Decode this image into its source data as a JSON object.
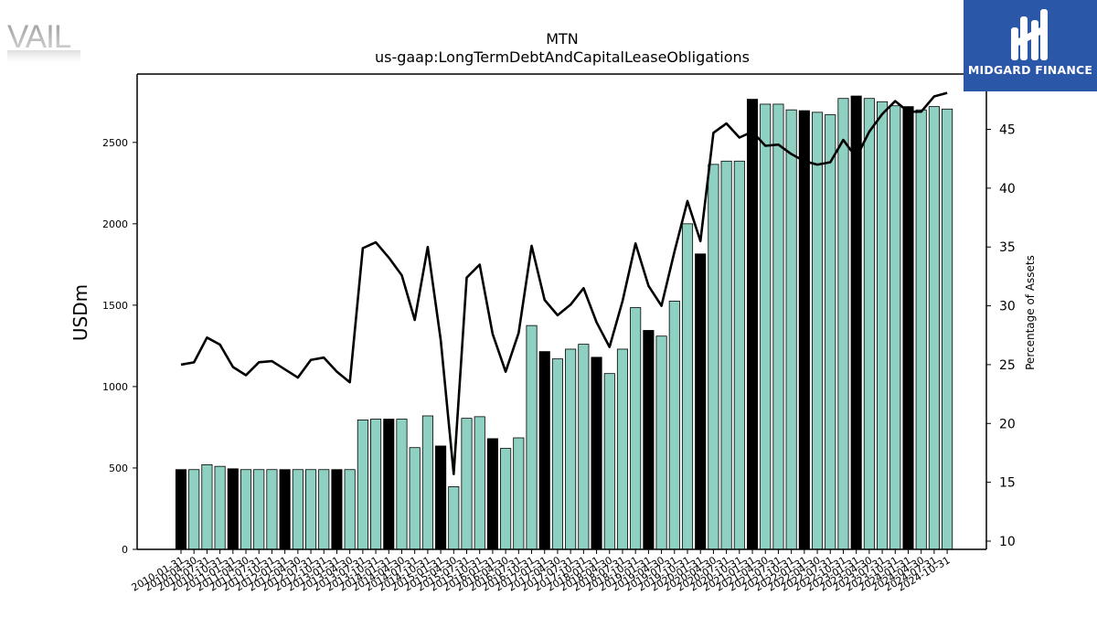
{
  "branding": {
    "left_logo_text": "VAIL",
    "right_logo_text": "MIDGARD FINANCE"
  },
  "chart_data": {
    "type": "bar",
    "title": "MTN",
    "subtitle": "us-gaap:LongTermDebtAndCapitalLeaseObligations",
    "ylabel": "USDm",
    "y2label": "Percentage of Assets",
    "ylim": [
      0,
      2920
    ],
    "y2lim": [
      9.3,
      49.7
    ],
    "yticks": [
      0,
      500,
      1000,
      1500,
      2000,
      2500
    ],
    "y2ticks": [
      10,
      15,
      20,
      25,
      30,
      35,
      40,
      45
    ],
    "categories": [
      "2010-01-31",
      "2010-04-30",
      "2010-07-31",
      "2010-10-31",
      "2011-01-31",
      "2011-04-30",
      "2011-07-31",
      "2011-10-31",
      "2012-01-31",
      "2012-04-30",
      "2012-07-31",
      "2012-10-31",
      "2013-01-31",
      "2013-04-30",
      "2013-07-31",
      "2013-10-31",
      "2014-01-31",
      "2014-04-30",
      "2014-07-31",
      "2014-10-31",
      "2015-01-31",
      "2015-04-30",
      "2015-07-31",
      "2015-10-31",
      "2016-01-31",
      "2016-04-30",
      "2016-07-31",
      "2016-10-31",
      "2017-01-31",
      "2017-04-30",
      "2017-07-31",
      "2017-10-31",
      "2018-01-31",
      "2018-04-30",
      "2018-07-31",
      "2018-10-31",
      "2019-01-31",
      "2019-04-30",
      "2019-07-31",
      "2019-10-31",
      "2020-01-31",
      "2020-04-30",
      "2020-07-31",
      "2020-10-31",
      "2021-01-31",
      "2021-04-30",
      "2021-07-31",
      "2021-10-31",
      "2022-01-31",
      "2022-04-30",
      "2022-07-31",
      "2022-10-31",
      "2023-01-31",
      "2023-04-30",
      "2023-07-31",
      "2023-10-31",
      "2024-01-31",
      "2024-04-30",
      "2024-07-31",
      "2024-10-31"
    ],
    "values": [
      490,
      490,
      520,
      510,
      495,
      490,
      490,
      490,
      490,
      490,
      490,
      490,
      490,
      490,
      795,
      800,
      800,
      800,
      625,
      820,
      635,
      385,
      805,
      815,
      680,
      620,
      685,
      1375,
      1215,
      1170,
      1230,
      1260,
      1180,
      1080,
      1230,
      1485,
      1345,
      1310,
      1525,
      2000,
      1815,
      2365,
      2385,
      2385,
      2765,
      2735,
      2735,
      2700,
      2695,
      2685,
      2670,
      2770,
      2785,
      2770,
      2750,
      2725,
      2720,
      2700,
      2720,
      2705
    ],
    "highlight": [
      true,
      false,
      false,
      false,
      true,
      false,
      false,
      false,
      true,
      false,
      false,
      false,
      true,
      false,
      false,
      false,
      true,
      false,
      false,
      false,
      true,
      false,
      false,
      false,
      true,
      false,
      false,
      false,
      true,
      false,
      false,
      false,
      true,
      false,
      false,
      false,
      true,
      false,
      false,
      false,
      true,
      false,
      false,
      false,
      true,
      false,
      false,
      false,
      true,
      false,
      false,
      false,
      true,
      false,
      false,
      false,
      true,
      false,
      false,
      false
    ],
    "line_values": [
      25.0,
      25.2,
      27.3,
      26.7,
      24.8,
      24.1,
      25.2,
      25.3,
      24.6,
      23.9,
      25.4,
      25.6,
      24.4,
      23.5,
      34.9,
      35.4,
      34.1,
      32.6,
      28.8,
      35.0,
      27.1,
      15.7,
      32.4,
      33.5,
      27.6,
      24.4,
      27.7,
      35.1,
      30.5,
      29.2,
      30.1,
      31.5,
      28.6,
      26.5,
      30.4,
      35.3,
      31.7,
      30.0,
      34.6,
      38.9,
      35.5,
      44.7,
      45.5,
      44.3,
      44.8,
      43.6,
      43.7,
      42.9,
      42.3,
      42.0,
      42.2,
      44.1,
      42.6,
      44.8,
      46.3,
      47.4,
      46.5,
      46.5,
      47.8,
      48.1
    ],
    "legend": "none",
    "grid": false,
    "colors": {
      "bar": "#8ed1c2",
      "bar_highlight": "#000000",
      "line": "#000000",
      "logo_bg": "#2b57a8"
    }
  }
}
